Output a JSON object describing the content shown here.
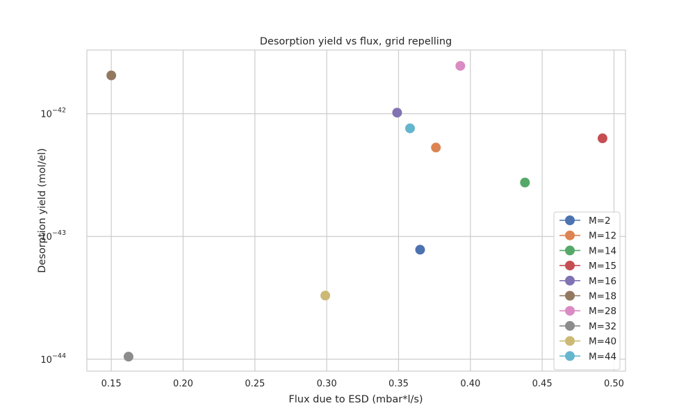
{
  "chart_data": {
    "type": "scatter",
    "title": "Desorption yield vs flux, grid repelling",
    "xlabel": "Flux due to ESD (mbar*l/s)",
    "ylabel": "Desorption yield (mol/el)",
    "xlim": [
      0.133,
      0.508
    ],
    "ylim": [
      8e-45,
      3.3e-42
    ],
    "yscale": "log",
    "grid": true,
    "legend_position": "lower-right",
    "x_ticks": [
      0.15,
      0.2,
      0.25,
      0.3,
      0.35,
      0.4,
      0.45,
      0.5
    ],
    "x_tick_labels": [
      "0.15",
      "0.20",
      "0.25",
      "0.30",
      "0.35",
      "0.40",
      "0.45",
      "0.50"
    ],
    "y_ticks": [
      {
        "value": 1e-44,
        "base": "10",
        "exp": "−44"
      },
      {
        "value": 1e-43,
        "base": "10",
        "exp": "−43"
      },
      {
        "value": 1e-42,
        "base": "10",
        "exp": "−42"
      }
    ],
    "series": [
      {
        "name": "M=2",
        "color": "#4c72b0",
        "x": 0.365,
        "y": 7.8e-44
      },
      {
        "name": "M=12",
        "color": "#dd8452",
        "x": 0.376,
        "y": 5.3e-43
      },
      {
        "name": "M=14",
        "color": "#55a868",
        "x": 0.438,
        "y": 2.75e-43
      },
      {
        "name": "M=15",
        "color": "#c44e52",
        "x": 0.492,
        "y": 6.3e-43
      },
      {
        "name": "M=16",
        "color": "#8172b3",
        "x": 0.349,
        "y": 1.02e-42
      },
      {
        "name": "M=18",
        "color": "#937860",
        "x": 0.15,
        "y": 2.05e-42
      },
      {
        "name": "M=28",
        "color": "#da8bc3",
        "x": 0.393,
        "y": 2.45e-42
      },
      {
        "name": "M=32",
        "color": "#8c8c8c",
        "x": 0.162,
        "y": 1.05e-44
      },
      {
        "name": "M=40",
        "color": "#ccb974",
        "x": 0.299,
        "y": 3.3e-44
      },
      {
        "name": "M=44",
        "color": "#64b5cd",
        "x": 0.358,
        "y": 7.6e-43
      }
    ]
  }
}
